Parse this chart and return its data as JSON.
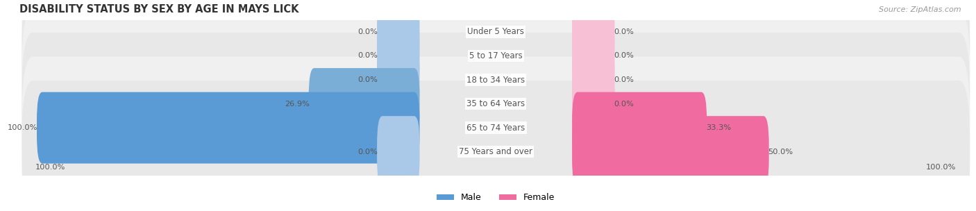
{
  "title": "DISABILITY STATUS BY SEX BY AGE IN MAYS LICK",
  "source": "Source: ZipAtlas.com",
  "categories": [
    "Under 5 Years",
    "5 to 17 Years",
    "18 to 34 Years",
    "35 to 64 Years",
    "65 to 74 Years",
    "75 Years and over"
  ],
  "male_values": [
    0.0,
    0.0,
    0.0,
    26.9,
    100.0,
    0.0
  ],
  "female_values": [
    0.0,
    0.0,
    0.0,
    0.0,
    33.3,
    50.0
  ],
  "male_color_light": "#aac9e8",
  "male_color": "#7aaed6",
  "male_color_full": "#5b9bd5",
  "female_color_light": "#f7c0d5",
  "female_color": "#f4a0c0",
  "female_color_full": "#f06ca0",
  "row_bg_even": "#f0f0f0",
  "row_bg_odd": "#e8e8e8",
  "label_color": "#555555",
  "title_color": "#333333",
  "axis_label_color": "#555555",
  "max_val": 100.0,
  "legend_male": "Male",
  "legend_female": "Female",
  "bottom_left_label": "100.0%",
  "bottom_right_label": "100.0%"
}
